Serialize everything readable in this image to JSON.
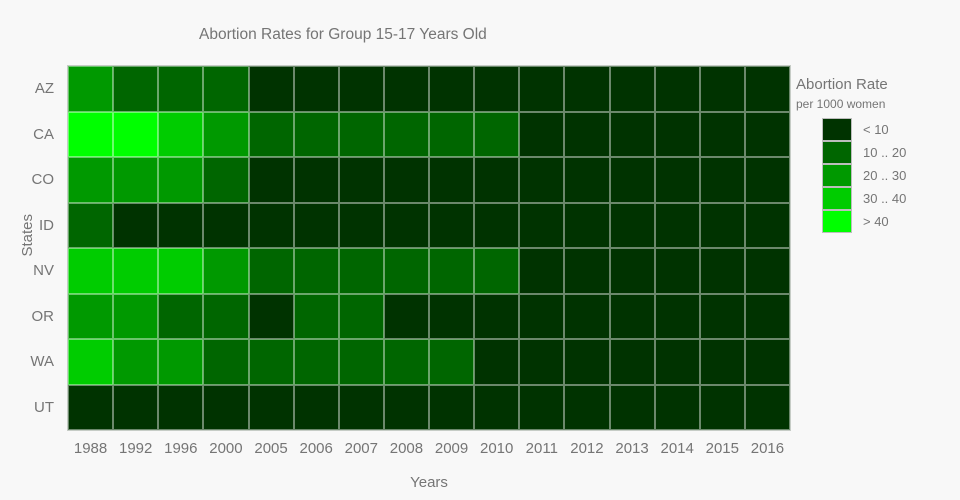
{
  "title": "Abortion Rates for Group 15-17 Years Old",
  "axes": {
    "x_label": "Years",
    "y_label": "States"
  },
  "legend": {
    "title": "Abortion Rate",
    "subtitle": "per 1000 women",
    "items": [
      {
        "label": "< 10",
        "color": "#003300"
      },
      {
        "label": "10 .. 20",
        "color": "#006600"
      },
      {
        "label": "20 .. 30",
        "color": "#009900"
      },
      {
        "label": "30 .. 40",
        "color": "#00CC00"
      },
      {
        "label": "> 40",
        "color": "#00FF00"
      }
    ]
  },
  "chart_data": {
    "type": "heatmap",
    "title": "Abortion Rates for Group 15-17 Years Old",
    "xlabel": "Years",
    "ylabel": "States",
    "x": [
      "1988",
      "1992",
      "1996",
      "2000",
      "2005",
      "2006",
      "2007",
      "2008",
      "2009",
      "2010",
      "2011",
      "2012",
      "2013",
      "2014",
      "2015",
      "2016"
    ],
    "y": [
      "AZ",
      "CA",
      "CO",
      "ID",
      "NV",
      "OR",
      "WA",
      "UT"
    ],
    "value_buckets": [
      "< 10",
      "10 .. 20",
      "20 .. 30",
      "30 .. 40",
      "> 40"
    ],
    "bucket_note": "each matrix entry is an index into value_buckets (abortion rate per 1000 women)",
    "series": [
      {
        "name": "AZ",
        "buckets": [
          2,
          1,
          1,
          1,
          0,
          0,
          0,
          0,
          0,
          0,
          0,
          0,
          0,
          0,
          0,
          0
        ]
      },
      {
        "name": "CA",
        "buckets": [
          4,
          4,
          3,
          2,
          1,
          1,
          1,
          1,
          1,
          1,
          0,
          0,
          0,
          0,
          0,
          0
        ]
      },
      {
        "name": "CO",
        "buckets": [
          2,
          2,
          2,
          1,
          0,
          0,
          0,
          0,
          0,
          0,
          0,
          0,
          0,
          0,
          0,
          0
        ]
      },
      {
        "name": "ID",
        "buckets": [
          1,
          0,
          0,
          0,
          0,
          0,
          0,
          0,
          0,
          0,
          0,
          0,
          0,
          0,
          0,
          0
        ]
      },
      {
        "name": "NV",
        "buckets": [
          3,
          3,
          3,
          2,
          1,
          1,
          1,
          1,
          1,
          1,
          0,
          0,
          0,
          0,
          0,
          0
        ]
      },
      {
        "name": "OR",
        "buckets": [
          2,
          2,
          1,
          1,
          0,
          1,
          1,
          0,
          0,
          0,
          0,
          0,
          0,
          0,
          0,
          0
        ]
      },
      {
        "name": "WA",
        "buckets": [
          3,
          2,
          2,
          1,
          1,
          1,
          1,
          1,
          1,
          0,
          0,
          0,
          0,
          0,
          0,
          0
        ]
      },
      {
        "name": "UT",
        "buckets": [
          0,
          0,
          0,
          0,
          0,
          0,
          0,
          0,
          0,
          0,
          0,
          0,
          0,
          0,
          0,
          0
        ]
      }
    ],
    "legend_position": "right",
    "grid": true
  },
  "colors": {
    "background": "#f8f8f8",
    "text": "#757575"
  }
}
